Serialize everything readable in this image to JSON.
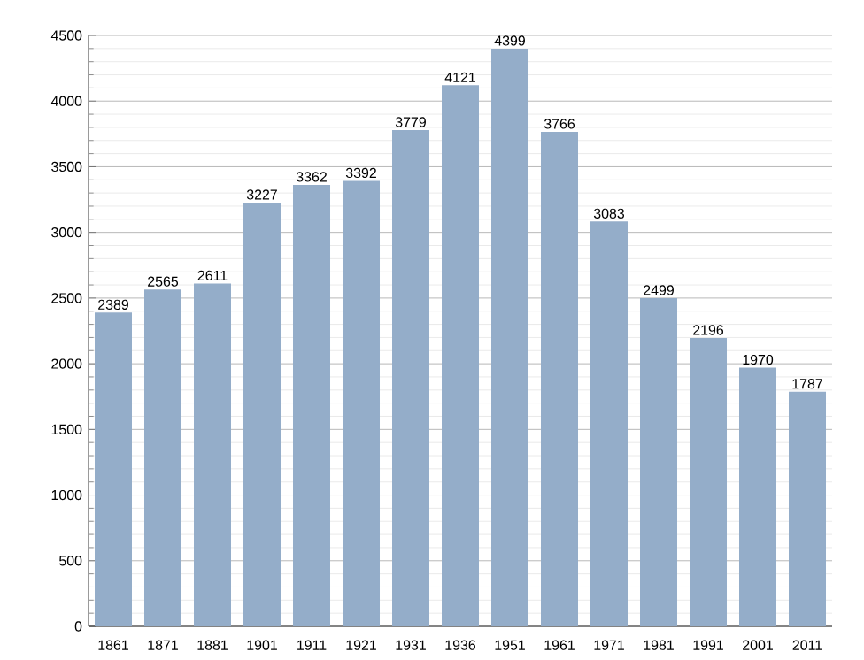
{
  "chart_data": {
    "type": "bar",
    "categories": [
      "1861",
      "1871",
      "1881",
      "1901",
      "1911",
      "1921",
      "1931",
      "1936",
      "1951",
      "1961",
      "1971",
      "1981",
      "1991",
      "2001",
      "2011"
    ],
    "values": [
      2389,
      2565,
      2611,
      3227,
      3362,
      3392,
      3779,
      4121,
      4399,
      3766,
      3083,
      2499,
      2196,
      1970,
      1787
    ],
    "color": "#94adc9",
    "ylim": [
      0,
      4500
    ],
    "yticks": [
      0,
      500,
      1000,
      1500,
      2000,
      2500,
      3000,
      3500,
      4000,
      4500
    ],
    "grid": "y",
    "data_labels": true
  }
}
